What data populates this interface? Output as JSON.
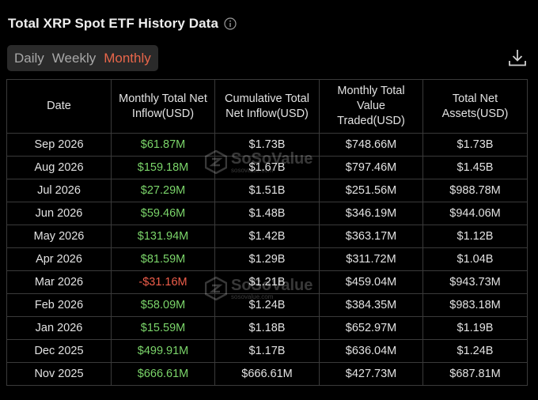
{
  "header": {
    "title": "Total XRP Spot ETF History Data",
    "info_icon": "info-circle-icon"
  },
  "tabs": [
    {
      "label": "Daily",
      "active": false
    },
    {
      "label": "Weekly",
      "active": false
    },
    {
      "label": "Monthly",
      "active": true
    }
  ],
  "toolbar": {
    "download_icon": "download-icon"
  },
  "colors": {
    "accent": "#e8664a",
    "positive": "#7bd56a",
    "negative": "#ee5d4a",
    "background": "#000000"
  },
  "table": {
    "columns": [
      "Date",
      "Monthly Total Net Inflow(USD)",
      "Cumulative Total Net Inflow(USD)",
      "Monthly Total Value Traded(USD)",
      "Total Net Assets(USD)"
    ],
    "rows": [
      {
        "date": "Sep 2026",
        "net_inflow": "$61.87M",
        "sign": "pos",
        "cumulative": "$1.73B",
        "value_traded": "$748.66M",
        "net_assets": "$1.73B"
      },
      {
        "date": "Aug 2026",
        "net_inflow": "$159.18M",
        "sign": "pos",
        "cumulative": "$1.67B",
        "value_traded": "$797.46M",
        "net_assets": "$1.45B"
      },
      {
        "date": "Jul 2026",
        "net_inflow": "$27.29M",
        "sign": "pos",
        "cumulative": "$1.51B",
        "value_traded": "$251.56M",
        "net_assets": "$988.78M"
      },
      {
        "date": "Jun 2026",
        "net_inflow": "$59.46M",
        "sign": "pos",
        "cumulative": "$1.48B",
        "value_traded": "$346.19M",
        "net_assets": "$944.06M"
      },
      {
        "date": "May 2026",
        "net_inflow": "$131.94M",
        "sign": "pos",
        "cumulative": "$1.42B",
        "value_traded": "$363.17M",
        "net_assets": "$1.12B"
      },
      {
        "date": "Apr 2026",
        "net_inflow": "$81.59M",
        "sign": "pos",
        "cumulative": "$1.29B",
        "value_traded": "$311.72M",
        "net_assets": "$1.04B"
      },
      {
        "date": "Mar 2026",
        "net_inflow": "-$31.16M",
        "sign": "neg",
        "cumulative": "$1.21B",
        "value_traded": "$459.04M",
        "net_assets": "$943.73M"
      },
      {
        "date": "Feb 2026",
        "net_inflow": "$58.09M",
        "sign": "pos",
        "cumulative": "$1.24B",
        "value_traded": "$384.35M",
        "net_assets": "$983.18M"
      },
      {
        "date": "Jan 2026",
        "net_inflow": "$15.59M",
        "sign": "pos",
        "cumulative": "$1.18B",
        "value_traded": "$652.97M",
        "net_assets": "$1.19B"
      },
      {
        "date": "Dec 2025",
        "net_inflow": "$499.91M",
        "sign": "pos",
        "cumulative": "$1.17B",
        "value_traded": "$636.04M",
        "net_assets": "$1.24B"
      },
      {
        "date": "Nov 2025",
        "net_inflow": "$666.61M",
        "sign": "pos",
        "cumulative": "$666.61M",
        "value_traded": "$427.73M",
        "net_assets": "$687.81M"
      }
    ]
  },
  "watermark": {
    "text": "SoSoValue",
    "subtext": "sosovalue.com"
  }
}
